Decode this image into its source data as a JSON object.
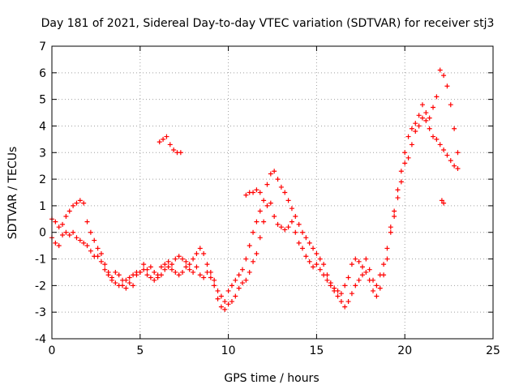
{
  "chart_data": {
    "type": "scatter",
    "title": "Day 181 of 2021, Sidereal Day-to-day VTEC variation (SDTVAR) for receiver stj3",
    "xlabel": "GPS time / hours",
    "ylabel": "SDTVAR / TECUs",
    "xlim": [
      0,
      25
    ],
    "ylim": [
      -4,
      7
    ],
    "x_ticks": [
      "0",
      "5",
      "10",
      "15",
      "20",
      "25"
    ],
    "y_ticks": [
      "-4",
      "-3",
      "-2",
      "-1",
      "0",
      "1",
      "2",
      "3",
      "4",
      "5",
      "6",
      "7"
    ],
    "grid": true,
    "marker": "+",
    "color": "#ff0000",
    "series": [
      {
        "name": "SDTVAR",
        "x": [
          0.0,
          0.2,
          0.4,
          0.6,
          0.8,
          1.0,
          1.2,
          1.4,
          1.6,
          1.8,
          2.0,
          2.2,
          2.4,
          2.6,
          2.8,
          3.0,
          3.2,
          3.4,
          3.6,
          3.8,
          4.0,
          4.2,
          4.4,
          4.6,
          4.8,
          5.0,
          5.2,
          5.4,
          5.6,
          5.8,
          6.0,
          6.2,
          6.4,
          6.6,
          6.8,
          7.0,
          7.2,
          7.4,
          7.6,
          7.8,
          8.0,
          8.2,
          8.4,
          8.6,
          8.8,
          9.0,
          9.2,
          9.4,
          9.6,
          9.8,
          10.0,
          10.2,
          10.4,
          10.6,
          10.8,
          11.0,
          11.2,
          11.4,
          11.6,
          11.8,
          12.0,
          12.2,
          12.4,
          12.6,
          12.8,
          13.0,
          13.2,
          13.4,
          13.6,
          13.8,
          14.0,
          14.2,
          14.4,
          14.6,
          14.8,
          15.0,
          15.2,
          15.4,
          15.6,
          15.8,
          16.0,
          16.2,
          16.4,
          16.6,
          16.8,
          17.0,
          17.2,
          17.4,
          17.6,
          17.8,
          18.0,
          18.2,
          18.4,
          18.6,
          18.8,
          19.0,
          19.2,
          19.4,
          19.6,
          19.8,
          20.0,
          20.2,
          20.4,
          20.6,
          20.8,
          21.0,
          21.2,
          21.4,
          21.6,
          21.8,
          22.0,
          22.2,
          22.4,
          22.6,
          22.8,
          23.0,
          0.0,
          0.2,
          0.4,
          0.6,
          0.8,
          1.0,
          1.2,
          1.4,
          1.6,
          1.8,
          2.0,
          2.2,
          2.4,
          2.6,
          2.8,
          3.0,
          3.2,
          3.4,
          3.6,
          3.8,
          4.0,
          4.2,
          4.4,
          4.6,
          4.8,
          5.0,
          5.2,
          5.4,
          5.6,
          5.8,
          6.0,
          6.2,
          6.4,
          6.6,
          6.8,
          7.0,
          7.2,
          7.4,
          7.6,
          7.8,
          8.0,
          8.2,
          8.4,
          8.6,
          8.8,
          9.0,
          9.2,
          9.4,
          9.6,
          9.8,
          10.0,
          10.2,
          10.4,
          10.6,
          10.8,
          11.0,
          11.2,
          11.4,
          11.6,
          11.8,
          12.0,
          12.2,
          12.4,
          12.6,
          12.8,
          13.0,
          13.2,
          13.4,
          13.6,
          13.8,
          14.0,
          14.2,
          14.4,
          14.6,
          14.8,
          15.0,
          15.2,
          15.4,
          15.6,
          15.8,
          16.0,
          16.2,
          16.4,
          16.6,
          16.8,
          17.0,
          17.2,
          17.4,
          17.6,
          17.8,
          18.0,
          18.2,
          18.4,
          18.6,
          18.8,
          19.0,
          19.2,
          19.4,
          19.6,
          19.8,
          20.0,
          20.2,
          20.4,
          20.6,
          20.8,
          21.0,
          21.2,
          21.4,
          21.6,
          21.8,
          22.0,
          22.2,
          22.4,
          22.6,
          22.8,
          23.0,
          6.1,
          6.3,
          6.5,
          6.7,
          6.9,
          7.1,
          7.3,
          22.1,
          22.2,
          11.0,
          11.2,
          11.4,
          11.6,
          11.8
        ],
        "y": [
          0.5,
          0.4,
          0.2,
          0.3,
          0.6,
          0.8,
          1.0,
          1.1,
          1.2,
          1.1,
          0.4,
          0.0,
          -0.3,
          -0.6,
          -0.8,
          -1.2,
          -1.5,
          -1.7,
          -1.5,
          -1.6,
          -1.8,
          -2.1,
          -1.9,
          -2.0,
          -1.6,
          -1.5,
          -1.2,
          -1.4,
          -1.3,
          -1.5,
          -1.6,
          -1.3,
          -1.2,
          -1.1,
          -1.2,
          -1.0,
          -0.9,
          -1.0,
          -1.1,
          -1.2,
          -1.0,
          -0.8,
          -0.6,
          -0.8,
          -1.2,
          -1.5,
          -1.8,
          -2.2,
          -2.4,
          -2.6,
          -2.2,
          -2.0,
          -1.8,
          -1.6,
          -1.4,
          -1.0,
          -0.5,
          0.0,
          0.4,
          0.8,
          1.2,
          1.8,
          2.2,
          2.3,
          2.0,
          1.7,
          1.5,
          1.2,
          0.9,
          0.6,
          0.3,
          0.0,
          -0.2,
          -0.4,
          -0.6,
          -0.8,
          -1.0,
          -1.2,
          -1.6,
          -1.9,
          -2.2,
          -2.4,
          -2.3,
          -2.0,
          -1.7,
          -1.2,
          -1.0,
          -1.1,
          -1.3,
          -1.0,
          -1.4,
          -1.8,
          -2.0,
          -1.6,
          -1.2,
          -0.6,
          0.2,
          0.8,
          1.6,
          2.3,
          3.0,
          3.6,
          3.9,
          4.1,
          4.4,
          4.8,
          4.5,
          4.3,
          4.7,
          5.1,
          6.1,
          5.9,
          5.5,
          4.8,
          3.9,
          3.0,
          -0.2,
          -0.4,
          -0.5,
          -0.1,
          0.0,
          -0.1,
          0.0,
          -0.2,
          -0.3,
          -0.4,
          -0.5,
          -0.7,
          -0.9,
          -0.9,
          -1.1,
          -1.4,
          -1.6,
          -1.8,
          -1.9,
          -2.0,
          -2.0,
          -1.8,
          -1.7,
          -1.6,
          -1.5,
          -1.5,
          -1.4,
          -1.6,
          -1.7,
          -1.8,
          -1.7,
          -1.6,
          -1.4,
          -1.3,
          -1.4,
          -1.5,
          -1.6,
          -1.5,
          -1.3,
          -1.4,
          -1.5,
          -1.3,
          -1.6,
          -1.7,
          -1.5,
          -1.7,
          -2.0,
          -2.5,
          -2.8,
          -2.9,
          -2.7,
          -2.6,
          -2.4,
          -2.1,
          -1.9,
          -1.8,
          -1.5,
          -1.1,
          -0.8,
          -0.2,
          0.4,
          1.0,
          1.1,
          0.6,
          0.3,
          0.2,
          0.1,
          0.2,
          0.4,
          0.0,
          -0.4,
          -0.6,
          -0.9,
          -1.1,
          -1.3,
          -1.2,
          -1.4,
          -1.6,
          -1.8,
          -2.0,
          -2.1,
          -2.2,
          -2.6,
          -2.8,
          -2.6,
          -2.3,
          -2.0,
          -1.8,
          -1.6,
          -1.5,
          -1.8,
          -2.2,
          -2.4,
          -2.1,
          -1.6,
          -1.0,
          0.0,
          0.6,
          1.3,
          1.9,
          2.6,
          2.8,
          3.3,
          3.8,
          4.0,
          4.3,
          4.2,
          3.9,
          3.6,
          3.5,
          3.3,
          3.1,
          2.9,
          2.7,
          2.5,
          2.4,
          3.4,
          3.5,
          3.6,
          3.3,
          3.1,
          3.0,
          3.0,
          1.2,
          1.1,
          1.4,
          1.5,
          1.5,
          1.6,
          1.5
        ]
      }
    ]
  }
}
